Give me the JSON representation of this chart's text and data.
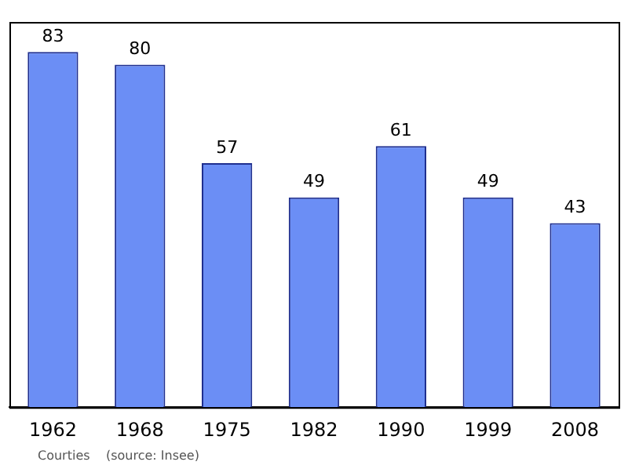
{
  "chart_data": {
    "type": "bar",
    "categories": [
      "1962",
      "1968",
      "1975",
      "1982",
      "1990",
      "1999",
      "2008"
    ],
    "values": [
      83,
      80,
      57,
      49,
      61,
      49,
      43
    ],
    "color": "#6b8ef5",
    "data_labels": true,
    "grid": false,
    "legend": false,
    "annotations": [
      "Courties    (source: Insee)"
    ]
  }
}
